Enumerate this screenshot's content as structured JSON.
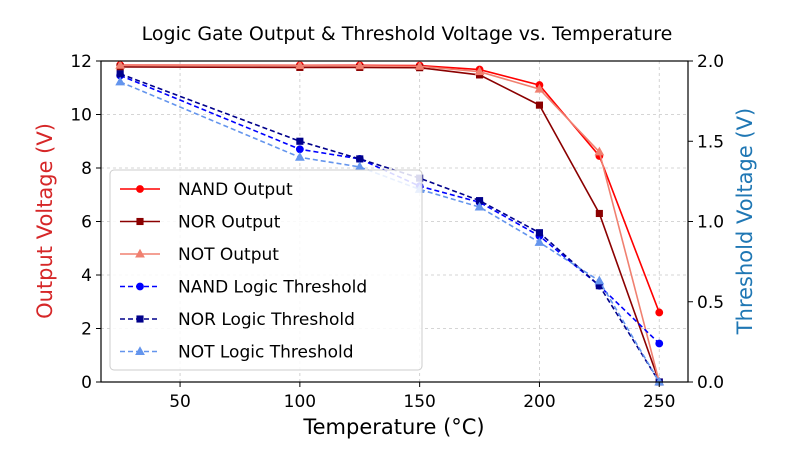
{
  "chart_data": {
    "type": "line",
    "title": "Logic Gate Output & Threshold Voltage vs. Temperature",
    "xlabel": "Temperature (°C)",
    "ylabel_left": "Output Voltage (V)",
    "ylabel_right": "Threshold Voltage (V)",
    "xlim": [
      17,
      262
    ],
    "ylim_left": [
      0,
      12
    ],
    "ylim_right": [
      0,
      2.0
    ],
    "x_ticks": [
      50,
      100,
      150,
      200,
      250
    ],
    "x_tick_labels": [
      "50",
      "100",
      "150",
      "200",
      "250"
    ],
    "y_left_ticks": [
      0,
      2,
      4,
      6,
      8,
      10,
      12
    ],
    "y_left_tick_labels": [
      "0",
      "2",
      "4",
      "6",
      "8",
      "10",
      "12"
    ],
    "y_right_ticks": [
      0,
      0.5,
      1.0,
      1.5,
      2.0
    ],
    "y_right_tick_labels": [
      "0.0",
      "0.5",
      "1.0",
      "1.5",
      "2.0"
    ],
    "grid": true,
    "legend_position": "center-left",
    "colors": {
      "left_axis_label": "#d62728",
      "right_axis_label": "#1f77b4"
    },
    "x": [
      25,
      100,
      125,
      150,
      175,
      200,
      225,
      250
    ],
    "series": [
      {
        "name": "NAND Output",
        "axis": "left",
        "color": "#ff0000",
        "marker": "circle",
        "dashed": false,
        "values": [
          11.85,
          11.84,
          11.84,
          11.83,
          11.68,
          11.1,
          8.45,
          2.6
        ]
      },
      {
        "name": "NOR Output",
        "axis": "left",
        "color": "#8b0000",
        "marker": "square",
        "dashed": false,
        "values": [
          11.78,
          11.76,
          11.76,
          11.75,
          11.48,
          10.35,
          6.3,
          0.0
        ]
      },
      {
        "name": "NOT Output",
        "axis": "left",
        "color": "#f08070",
        "marker": "triangle",
        "dashed": false,
        "values": [
          11.84,
          11.83,
          11.82,
          11.8,
          11.6,
          10.95,
          8.6,
          0.0
        ]
      },
      {
        "name": "NAND Logic Threshold",
        "axis": "right",
        "color": "#0000ff",
        "marker": "circle",
        "dashed": true,
        "values": [
          1.91,
          1.45,
          1.39,
          1.22,
          1.12,
          0.91,
          0.6,
          0.24
        ]
      },
      {
        "name": "NOR Logic Threshold",
        "axis": "right",
        "color": "#00008b",
        "marker": "square",
        "dashed": true,
        "values": [
          1.92,
          1.5,
          1.39,
          1.27,
          1.13,
          0.93,
          0.6,
          0.0
        ]
      },
      {
        "name": "NOT Logic Threshold",
        "axis": "right",
        "color": "#6495ed",
        "marker": "triangle",
        "dashed": true,
        "values": [
          1.87,
          1.4,
          1.34,
          1.2,
          1.09,
          0.87,
          0.63,
          0.0
        ]
      }
    ]
  }
}
